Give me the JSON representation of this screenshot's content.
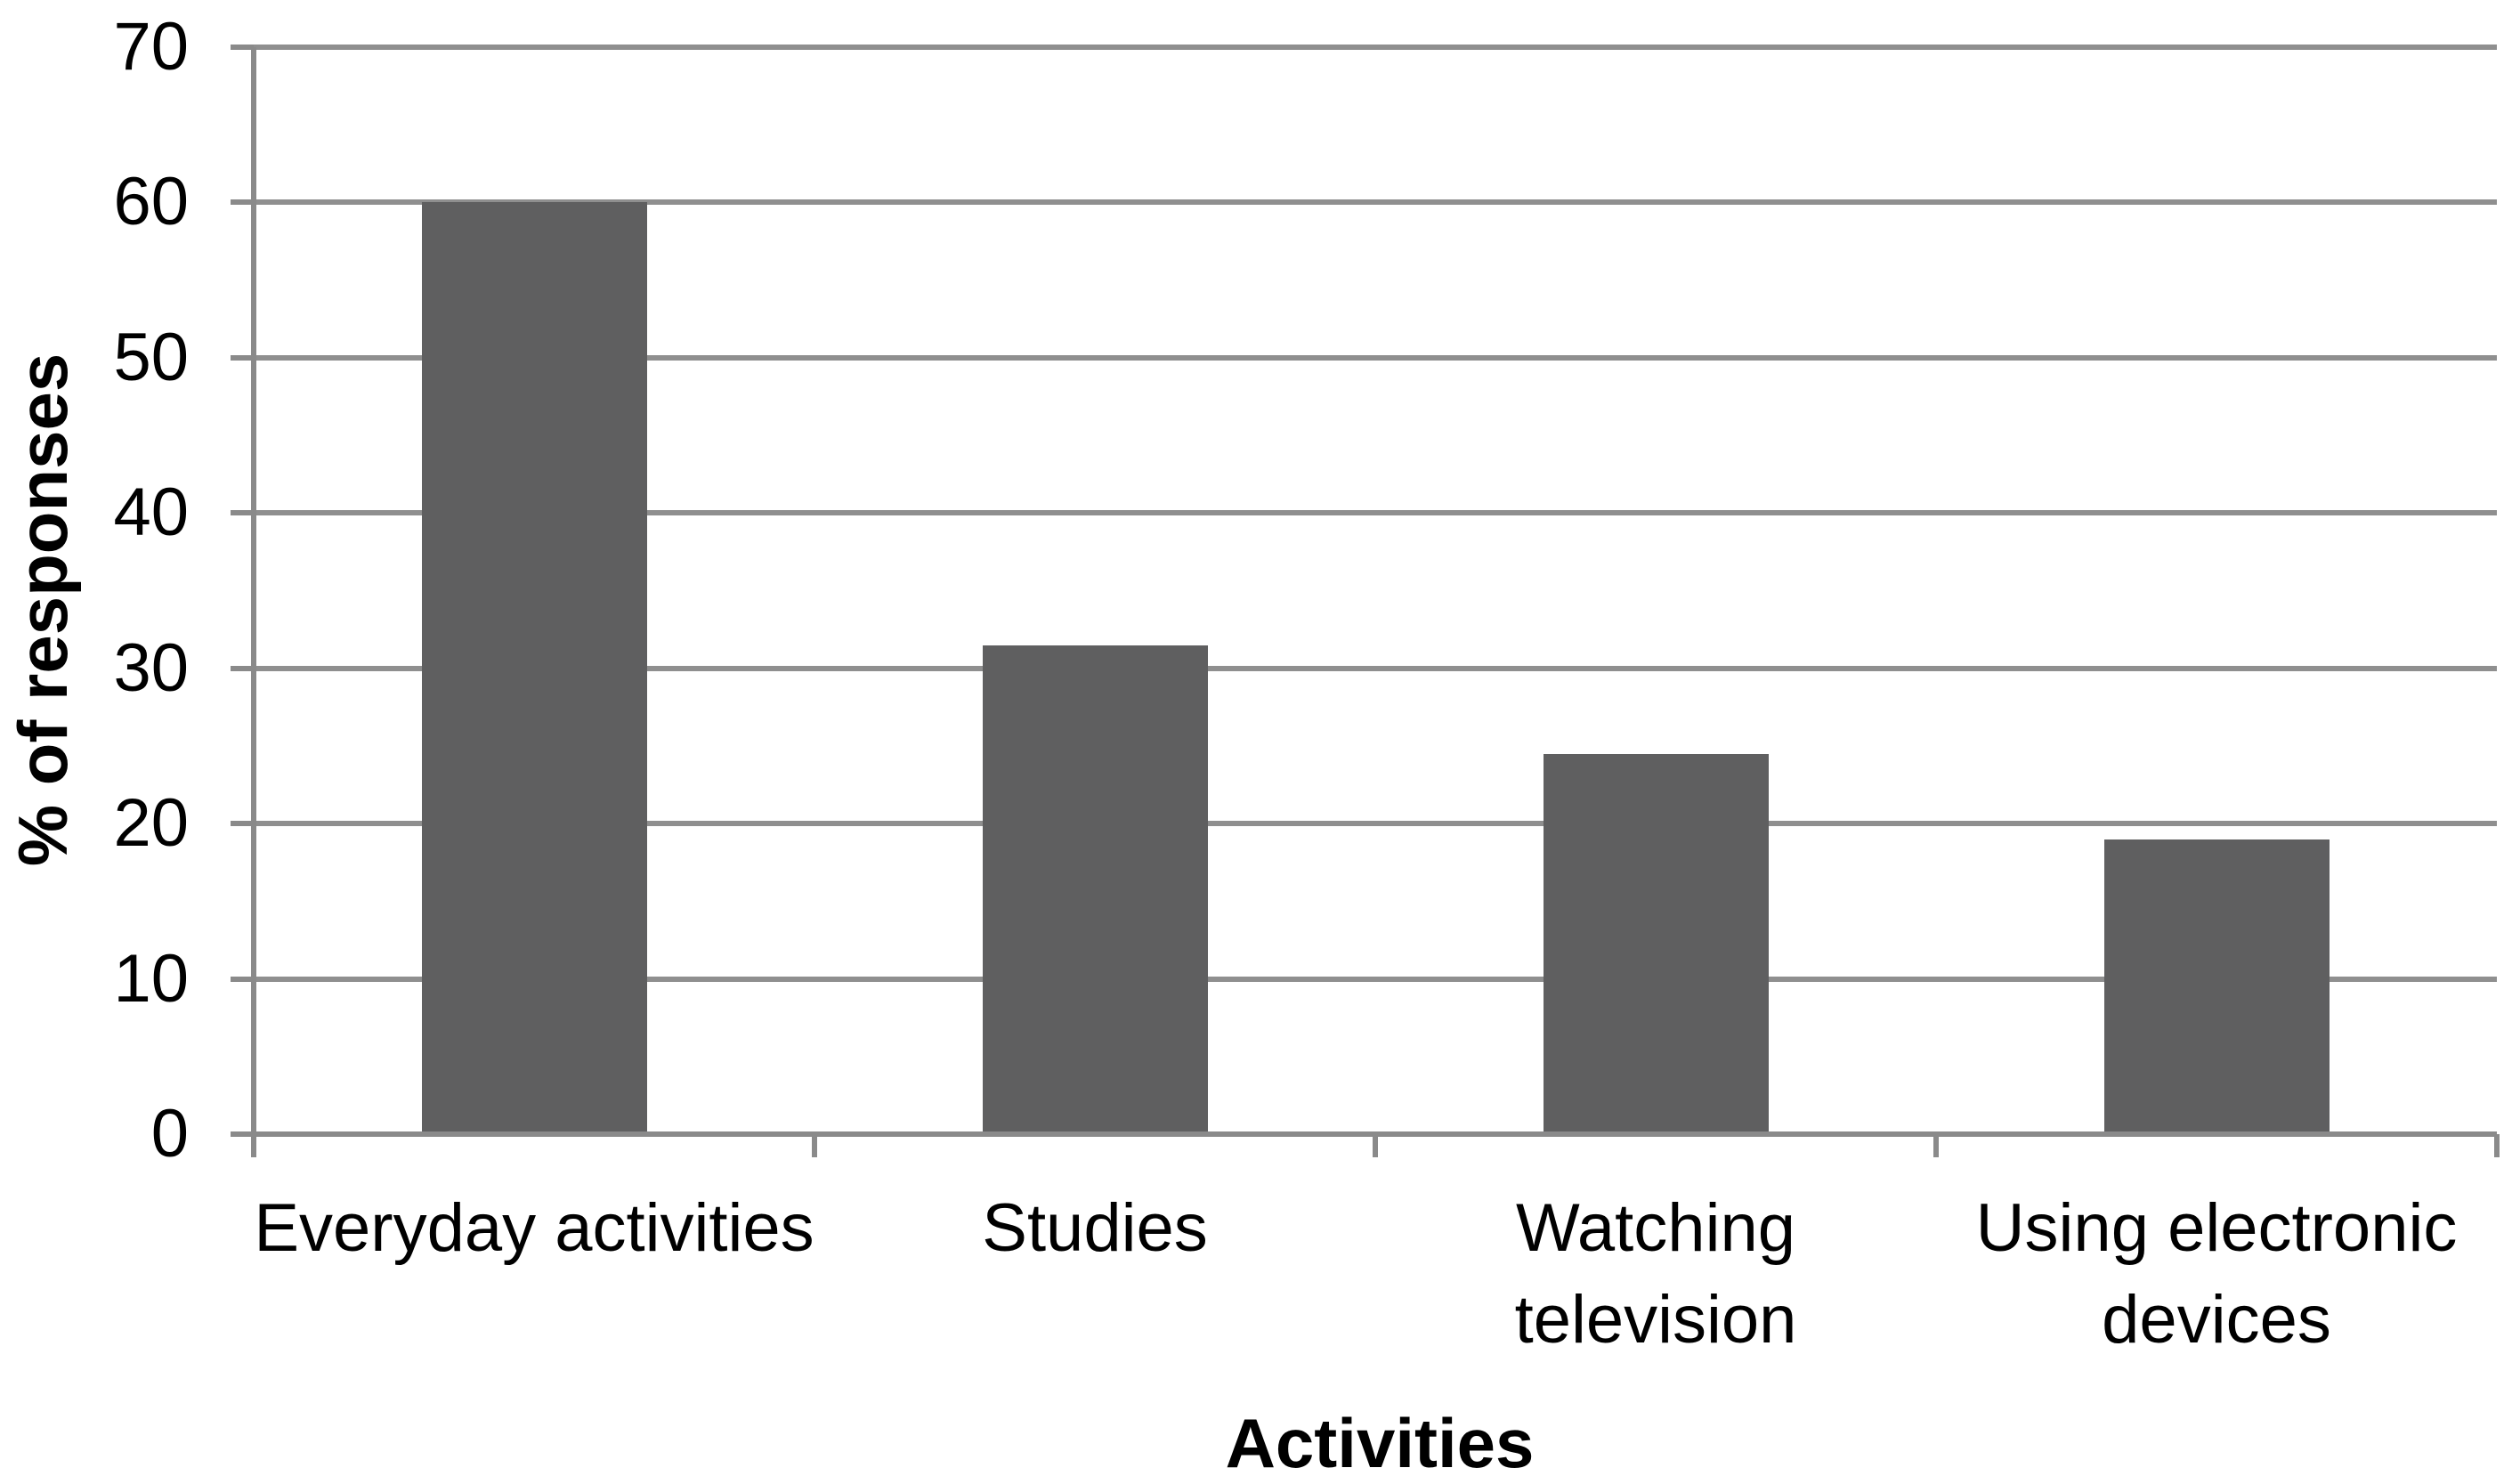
{
  "chart_data": {
    "type": "bar",
    "title": "",
    "categories": [
      "Everyday activities",
      "Studies",
      "Watching television",
      "Using electronic devices"
    ],
    "category_lines": [
      [
        "Everyday activities"
      ],
      [
        "Studies"
      ],
      [
        "Watching",
        "television"
      ],
      [
        "Using electronic",
        "devices"
      ]
    ],
    "values": [
      60,
      31.5,
      24.5,
      19
    ],
    "xlabel": "Activities",
    "ylabel": "% of responses",
    "ylim": [
      0,
      70
    ],
    "yticks": [
      0,
      10,
      20,
      30,
      40,
      50,
      60,
      70
    ],
    "grid": "horizontal",
    "legend_position": "none",
    "colors": {
      "bar": "#5f5f60",
      "gridline": "#8f8f8f",
      "axis": "#8a8a8a",
      "text": "#000000",
      "background": "#ffffff"
    }
  }
}
